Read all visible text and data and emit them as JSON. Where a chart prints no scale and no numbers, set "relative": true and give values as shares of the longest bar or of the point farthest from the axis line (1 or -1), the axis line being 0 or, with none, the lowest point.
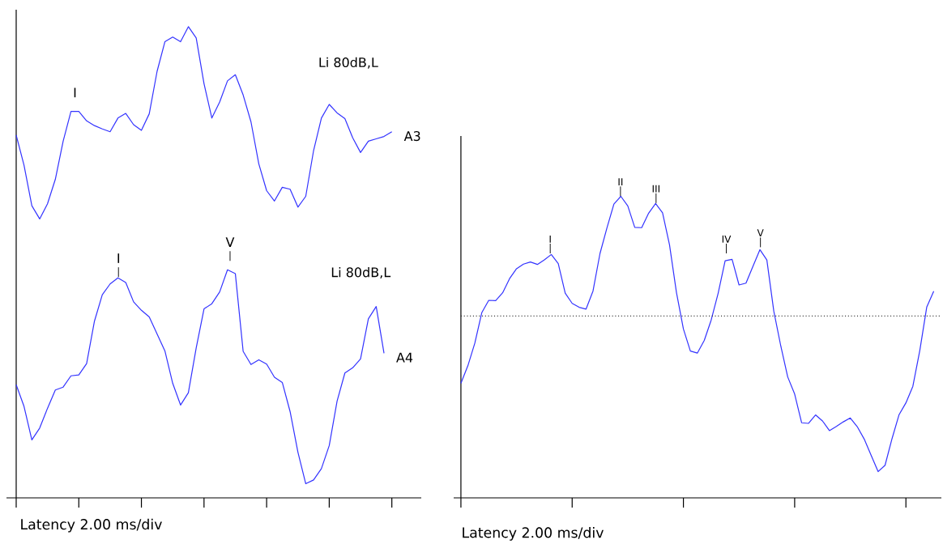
{
  "chart_data": [
    {
      "type": "line",
      "relative": true,
      "xlabel": "Latency 2.00 ms/div",
      "categories": [
        null,
        null,
        null,
        null,
        null,
        null,
        null,
        null,
        null,
        null,
        null,
        null,
        null,
        null,
        null,
        null,
        null,
        null,
        null,
        null,
        null,
        null,
        null,
        null,
        null,
        null,
        null,
        null,
        null,
        null,
        null,
        null,
        null,
        null,
        null,
        null,
        null,
        null,
        null,
        null,
        null,
        null,
        null,
        null,
        null,
        null,
        null,
        null,
        null
      ],
      "series": [
        {
          "name": "A3",
          "color": "#3333ff",
          "values": [
            0.77,
            0.706,
            0.62,
            0.592,
            0.624,
            0.676,
            0.757,
            0.82,
            0.82,
            0.8,
            0.79,
            0.783,
            0.777,
            0.806,
            0.816,
            0.792,
            0.78,
            0.815,
            0.905,
            0.968,
            0.978,
            0.968,
            1.0,
            0.976,
            0.879,
            0.806,
            0.84,
            0.885,
            0.898,
            0.855,
            0.798,
            0.709,
            0.652,
            0.63,
            0.659,
            0.655,
            0.617,
            0.64,
            0.737,
            0.806,
            0.835,
            0.817,
            0.805,
            0.764,
            0.733,
            0.757,
            0.762,
            0.767,
            0.777
          ]
        },
        {
          "name": "A4",
          "color": "#3333ff",
          "values": [
            0.24,
            0.194,
            0.123,
            0.148,
            0.19,
            0.229,
            0.235,
            0.259,
            0.261,
            0.285,
            0.375,
            0.431,
            0.454,
            0.467,
            0.457,
            0.416,
            0.398,
            0.384,
            0.348,
            0.312,
            0.243,
            0.197,
            0.223,
            0.318,
            0.401,
            0.412,
            0.437,
            0.484,
            0.476,
            0.311,
            0.283,
            0.293,
            0.284,
            0.256,
            0.245,
            0.183,
            0.097,
            0.03,
            0.038,
            0.062,
            0.111,
            0.205,
            0.265,
            0.276,
            0.295,
            0.38,
            0.406,
            0.307,
            null
          ]
        }
      ],
      "annotations": [
        "I",
        "I",
        "V",
        "Li 80dB,L",
        "Li 80dB,L"
      ]
    },
    {
      "type": "line",
      "relative": true,
      "xlabel": "Latency 2.00 ms/div",
      "categories": [
        null,
        null,
        null,
        null,
        null,
        null,
        null,
        null,
        null,
        null,
        null,
        null,
        null,
        null,
        null,
        null,
        null,
        null,
        null,
        null,
        null,
        null,
        null,
        null,
        null,
        null,
        null,
        null,
        null,
        null,
        null,
        null,
        null,
        null,
        null,
        null,
        null,
        null,
        null,
        null,
        null,
        null,
        null,
        null,
        null,
        null,
        null,
        null,
        null,
        null,
        null,
        null,
        null,
        null,
        null,
        null,
        null,
        null,
        null,
        null,
        null,
        null,
        null,
        null,
        null,
        null,
        null,
        null,
        null
      ],
      "series": [
        {
          "color": "#3333ff",
          "values": [
            0.38,
            0.438,
            0.513,
            0.614,
            0.655,
            0.654,
            0.68,
            0.727,
            0.76,
            0.775,
            0.782,
            0.774,
            0.789,
            0.807,
            0.777,
            0.679,
            0.645,
            0.632,
            0.626,
            0.686,
            0.81,
            0.895,
            0.974,
            1.0,
            0.968,
            0.897,
            0.896,
            0.944,
            0.976,
            0.945,
            0.839,
            0.681,
            0.56,
            0.487,
            0.48,
            0.522,
            0.59,
            0.679,
            0.786,
            0.791,
            0.706,
            0.712,
            0.768,
            0.823,
            0.789,
            0.619,
            0.504,
            0.401,
            0.344,
            0.249,
            0.247,
            0.275,
            0.255,
            0.223,
            0.237,
            0.252,
            0.265,
            0.236,
            0.195,
            0.141,
            0.087,
            0.108,
            0.196,
            0.275,
            0.315,
            0.37,
            0.489,
            0.633,
            0.685
          ]
        }
      ],
      "ref_lines": [
        {
          "axis": "y",
          "value": 0.603,
          "color": "#333333",
          "line_style": "dotted"
        }
      ],
      "annotations": [
        "I",
        "II",
        "III",
        "IV",
        "V"
      ]
    }
  ]
}
